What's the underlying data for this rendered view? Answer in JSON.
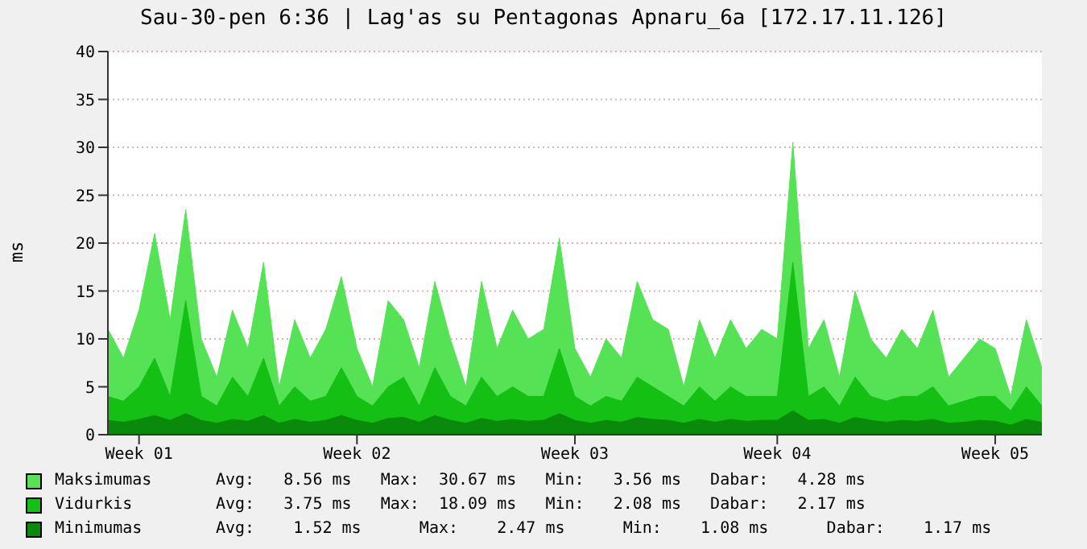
{
  "chart_data": {
    "type": "area",
    "title": "Sau-30-pen 6:36 | Lag'as su Pentagonas Apnaru_6a [172.17.11.126]",
    "ylabel": "ms",
    "categories": [
      null,
      null,
      "Week 01",
      null,
      null,
      null,
      null,
      null,
      null,
      null,
      null,
      null,
      null,
      null,
      null,
      null,
      "Week 02",
      null,
      null,
      null,
      null,
      null,
      null,
      null,
      null,
      null,
      null,
      null,
      null,
      null,
      "Week 03",
      null,
      null,
      null,
      null,
      null,
      null,
      null,
      null,
      null,
      null,
      null,
      null,
      "Week 04",
      null,
      null,
      null,
      null,
      null,
      null,
      null,
      null,
      null,
      null,
      null,
      null,
      null,
      "Week 05",
      null,
      null,
      null
    ],
    "series": [
      {
        "name": "Maksimumas",
        "color": "#55e355",
        "values": [
          11,
          8,
          13,
          21,
          12,
          23.5,
          10,
          6,
          13,
          9,
          18,
          5,
          12,
          8,
          11,
          16.5,
          9,
          5,
          14,
          12,
          7,
          16,
          10,
          5,
          16,
          9,
          13,
          10,
          11,
          20.5,
          9,
          6,
          10,
          8,
          16,
          12,
          11,
          5,
          12,
          8,
          12,
          9,
          11,
          10,
          30.5,
          9,
          12,
          6,
          15,
          10,
          8,
          11,
          9,
          13,
          6,
          8,
          10,
          9,
          4,
          12,
          7
        ]
      },
      {
        "name": "Vidurkis",
        "color": "#14c014",
        "values": [
          4,
          3.5,
          5,
          8,
          4,
          14,
          4,
          3,
          6,
          4,
          8,
          3,
          5,
          3.5,
          4,
          7,
          4,
          3,
          5,
          6,
          3,
          7,
          4,
          3,
          6,
          4,
          5,
          4,
          4,
          9,
          4,
          3,
          4,
          3.5,
          6,
          5,
          4,
          3,
          5,
          3.5,
          5,
          4,
          4,
          4,
          18,
          4,
          5,
          3,
          6,
          4,
          3.5,
          4,
          4,
          5,
          3,
          3.5,
          4,
          4,
          2.5,
          5,
          3
        ]
      },
      {
        "name": "Minimumas",
        "color": "#0a8a0a",
        "values": [
          1.5,
          1.3,
          1.6,
          2,
          1.5,
          2.2,
          1.5,
          1.2,
          1.6,
          1.4,
          2,
          1.2,
          1.6,
          1.3,
          1.5,
          2,
          1.5,
          1.2,
          1.7,
          1.8,
          1.3,
          2,
          1.5,
          1.2,
          1.7,
          1.4,
          1.6,
          1.4,
          1.5,
          2.2,
          1.5,
          1.2,
          1.5,
          1.3,
          1.8,
          1.6,
          1.5,
          1.2,
          1.6,
          1.3,
          1.6,
          1.4,
          1.5,
          1.5,
          2.5,
          1.5,
          1.6,
          1.2,
          1.8,
          1.5,
          1.3,
          1.5,
          1.4,
          1.6,
          1.2,
          1.3,
          1.5,
          1.4,
          1,
          1.6,
          1.3
        ]
      }
    ],
    "ylim": [
      0,
      40
    ],
    "yticks": [
      0,
      5,
      10,
      15,
      20,
      25,
      30,
      35,
      40
    ],
    "grid": "y",
    "legend": "bottom",
    "annotations": [
      "Avg:   8.56 ms   Max:  30.67 ms   Min:   3.56 ms   Dabar:   4.28 ms",
      "Avg:   3.75 ms   Max:  18.09 ms   Min:   2.08 ms   Dabar:   2.17 ms",
      "Avg:    1.52 ms      Max:    2.47 ms      Min:    1.08 ms      Dabar:    1.17 ms"
    ]
  }
}
